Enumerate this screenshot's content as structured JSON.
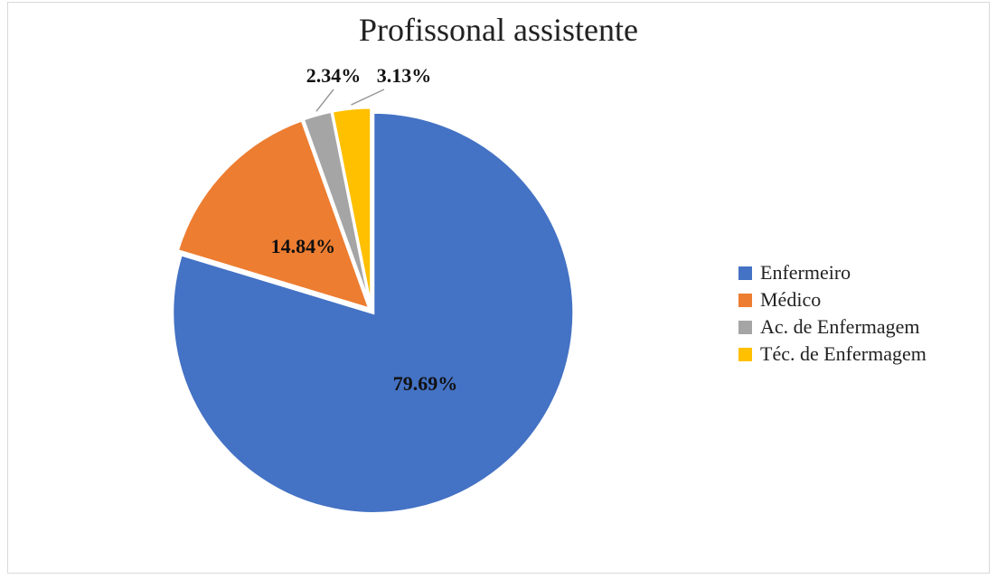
{
  "chart_data": {
    "type": "pie",
    "title": "Profissonal assistente",
    "categories": [
      "Enfermeiro",
      "Médico",
      "Ac. de Enfermagem",
      "Téc. de Enfermagem"
    ],
    "values": [
      79.69,
      14.84,
      2.34,
      3.13
    ],
    "data_labels": [
      "79.69%",
      "14.84%",
      "2.34%",
      "3.13%"
    ],
    "colors": [
      "#4472C4",
      "#ED7D31",
      "#A5A5A5",
      "#FFC000"
    ],
    "start_angle": "12 o'clock",
    "direction": "clockwise",
    "legend_position": "right"
  }
}
